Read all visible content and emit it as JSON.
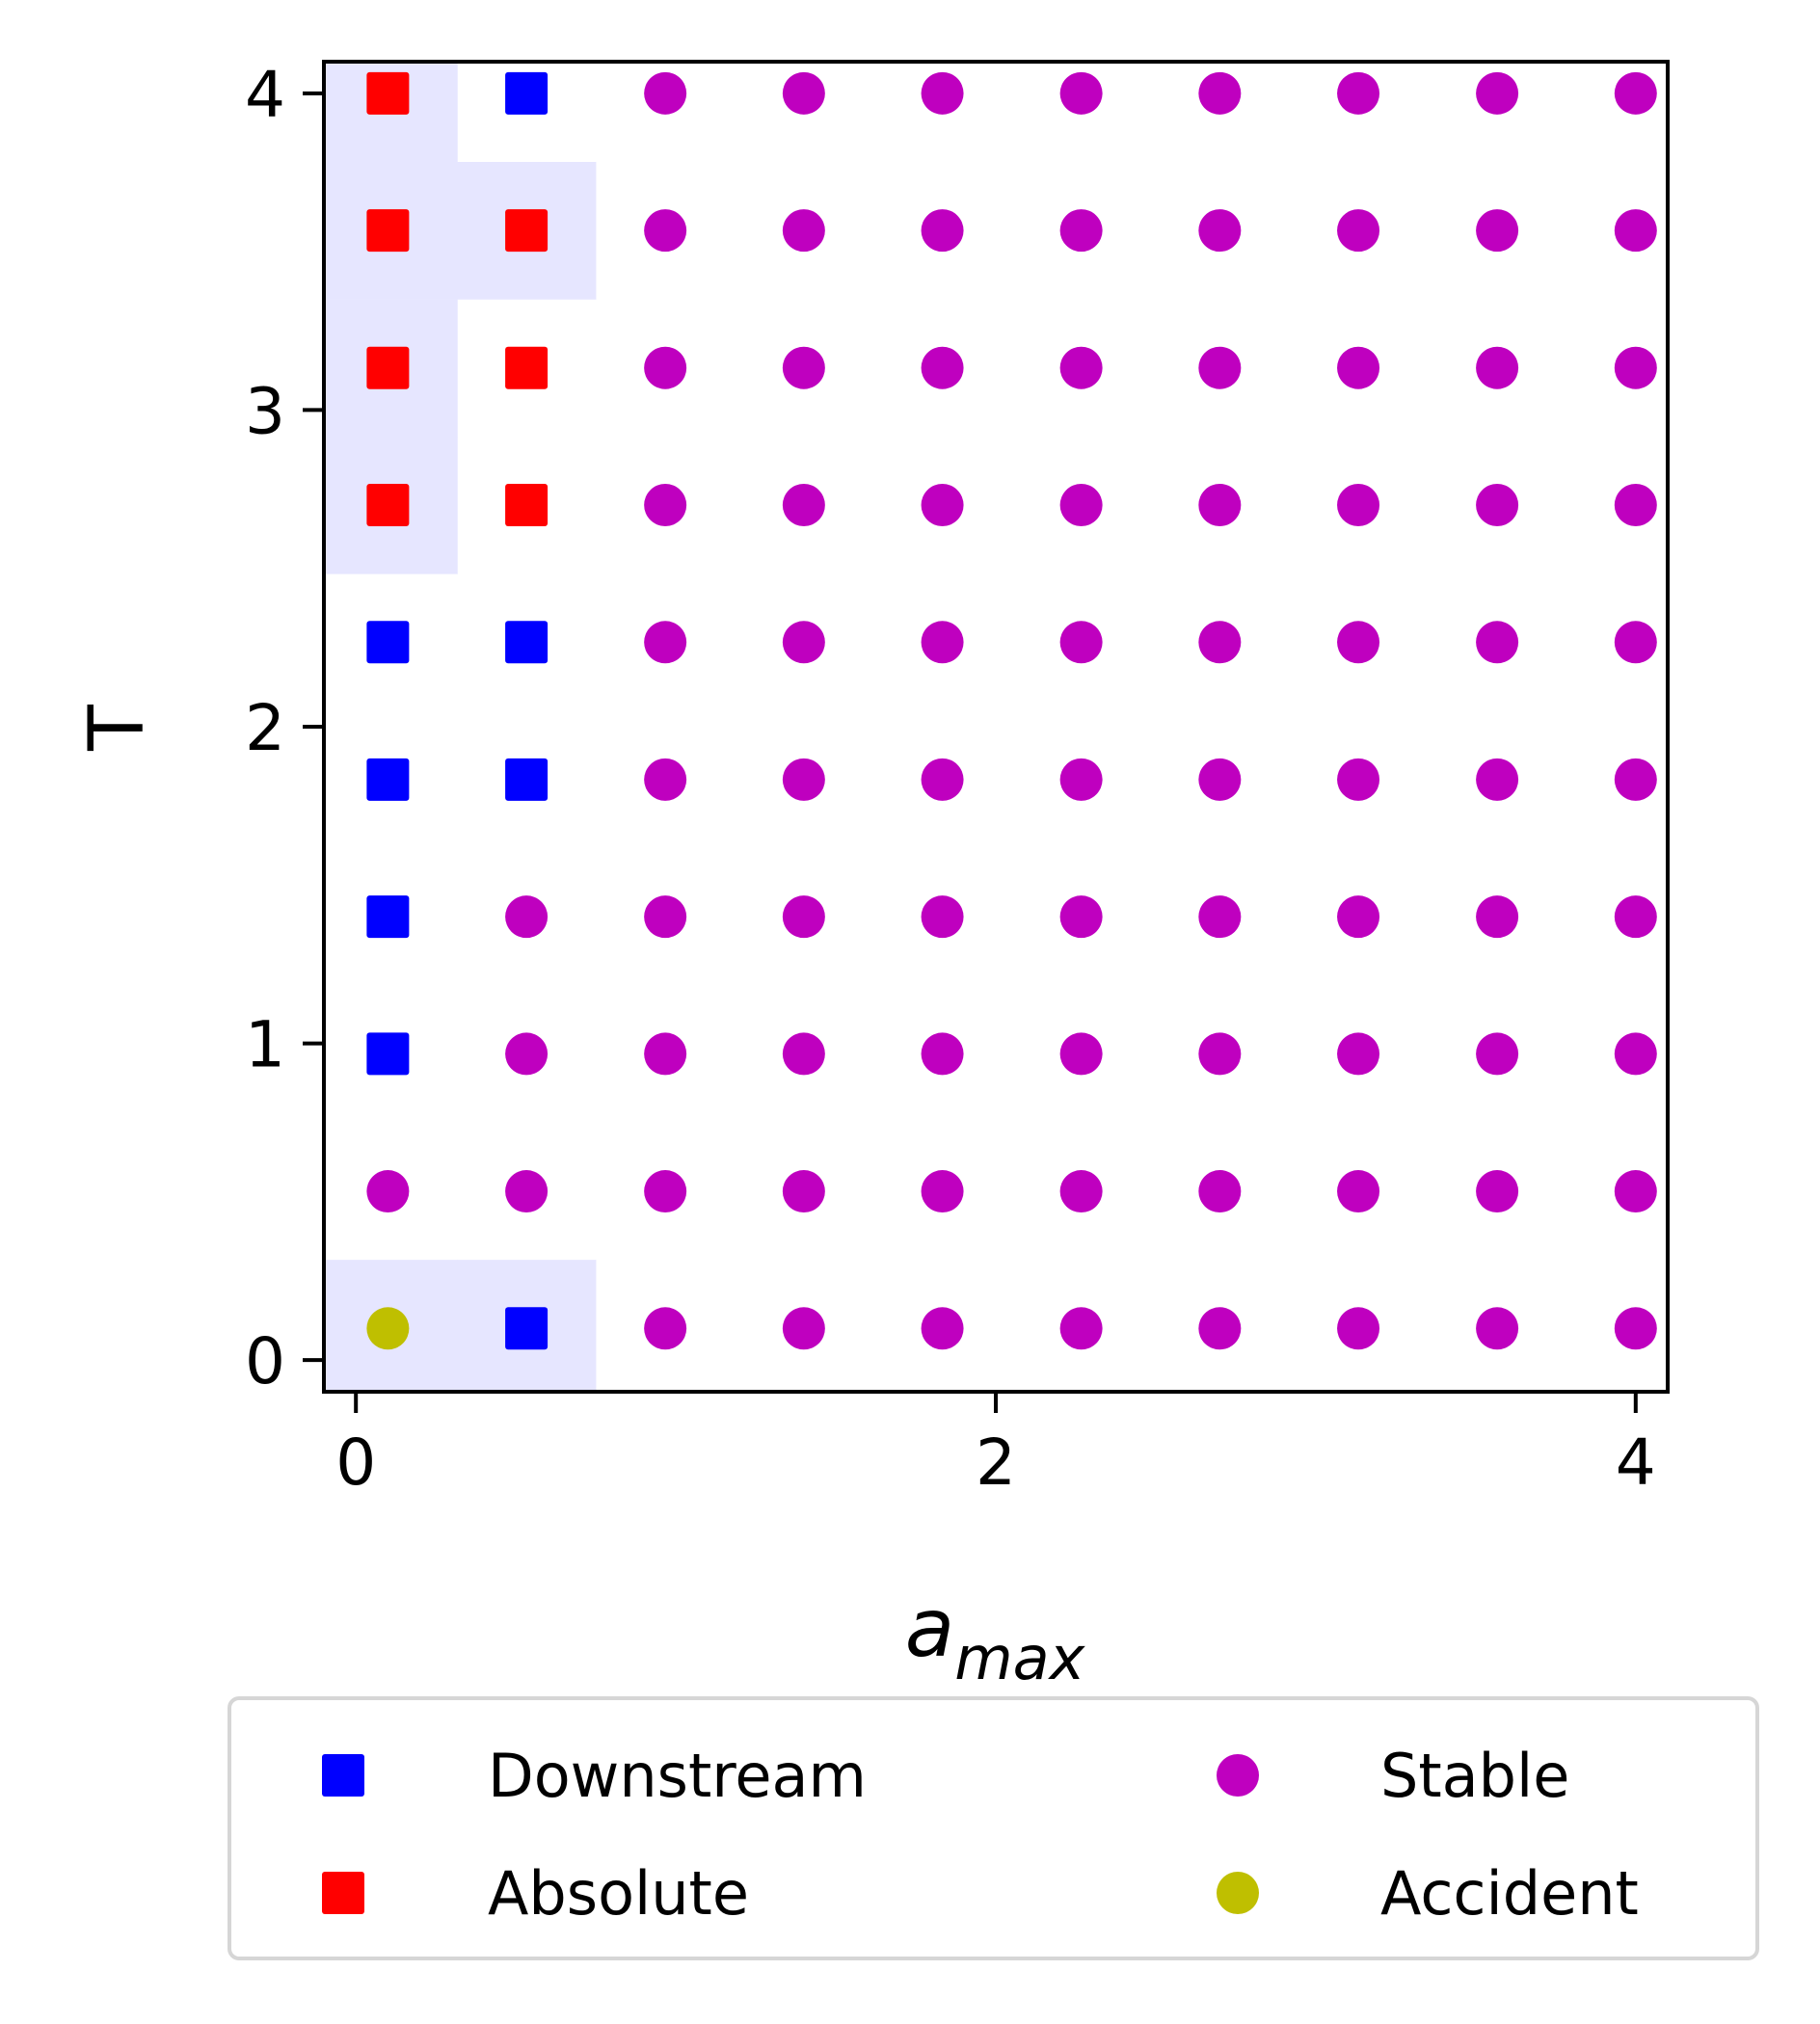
{
  "chart_data": {
    "type": "scatter",
    "xlabel": "a",
    "xlabel_subscript": "max",
    "ylabel": "T",
    "xlim": [
      -0.1,
      4.1
    ],
    "ylim": [
      -0.1,
      4.1
    ],
    "xticks": [
      0,
      2,
      4
    ],
    "yticks": [
      0,
      1,
      2,
      3,
      4
    ],
    "grid": false,
    "legend_position": "below",
    "legend_columns": 2,
    "x_values": [
      0.1,
      0.533,
      0.967,
      1.4,
      1.833,
      2.267,
      2.7,
      3.133,
      3.567,
      4.0
    ],
    "y_values": [
      0.1,
      0.533,
      0.967,
      1.4,
      1.833,
      2.267,
      2.7,
      3.133,
      3.567,
      4.0
    ],
    "classes": {
      "D": {
        "name": "Downstream",
        "marker": "square",
        "color": "#0000ff"
      },
      "A": {
        "name": "Absolute",
        "marker": "square",
        "color": "#ff0000"
      },
      "S": {
        "name": "Stable",
        "marker": "circle",
        "color": "#bf00bf"
      },
      "C": {
        "name": "Accident",
        "marker": "circle",
        "color": "#bfbf00"
      }
    },
    "legend_order": [
      "D",
      "A",
      "S",
      "C"
    ],
    "grid_classes_by_row_bottom_to_top": [
      [
        "C",
        "D",
        "S",
        "S",
        "S",
        "S",
        "S",
        "S",
        "S",
        "S"
      ],
      [
        "S",
        "S",
        "S",
        "S",
        "S",
        "S",
        "S",
        "S",
        "S",
        "S"
      ],
      [
        "D",
        "S",
        "S",
        "S",
        "S",
        "S",
        "S",
        "S",
        "S",
        "S"
      ],
      [
        "D",
        "S",
        "S",
        "S",
        "S",
        "S",
        "S",
        "S",
        "S",
        "S"
      ],
      [
        "D",
        "D",
        "S",
        "S",
        "S",
        "S",
        "S",
        "S",
        "S",
        "S"
      ],
      [
        "D",
        "D",
        "S",
        "S",
        "S",
        "S",
        "S",
        "S",
        "S",
        "S"
      ],
      [
        "A",
        "A",
        "S",
        "S",
        "S",
        "S",
        "S",
        "S",
        "S",
        "S"
      ],
      [
        "A",
        "A",
        "S",
        "S",
        "S",
        "S",
        "S",
        "S",
        "S",
        "S"
      ],
      [
        "A",
        "A",
        "S",
        "S",
        "S",
        "S",
        "S",
        "S",
        "S",
        "S"
      ],
      [
        "A",
        "D",
        "S",
        "S",
        "S",
        "S",
        "S",
        "S",
        "S",
        "S"
      ]
    ],
    "shaded_cells": [
      [
        0,
        0
      ],
      [
        1,
        0
      ],
      [
        0,
        6
      ],
      [
        0,
        7
      ],
      [
        0,
        8
      ],
      [
        0,
        9
      ],
      [
        1,
        8
      ]
    ],
    "shade_color": "#e6e6ff"
  }
}
